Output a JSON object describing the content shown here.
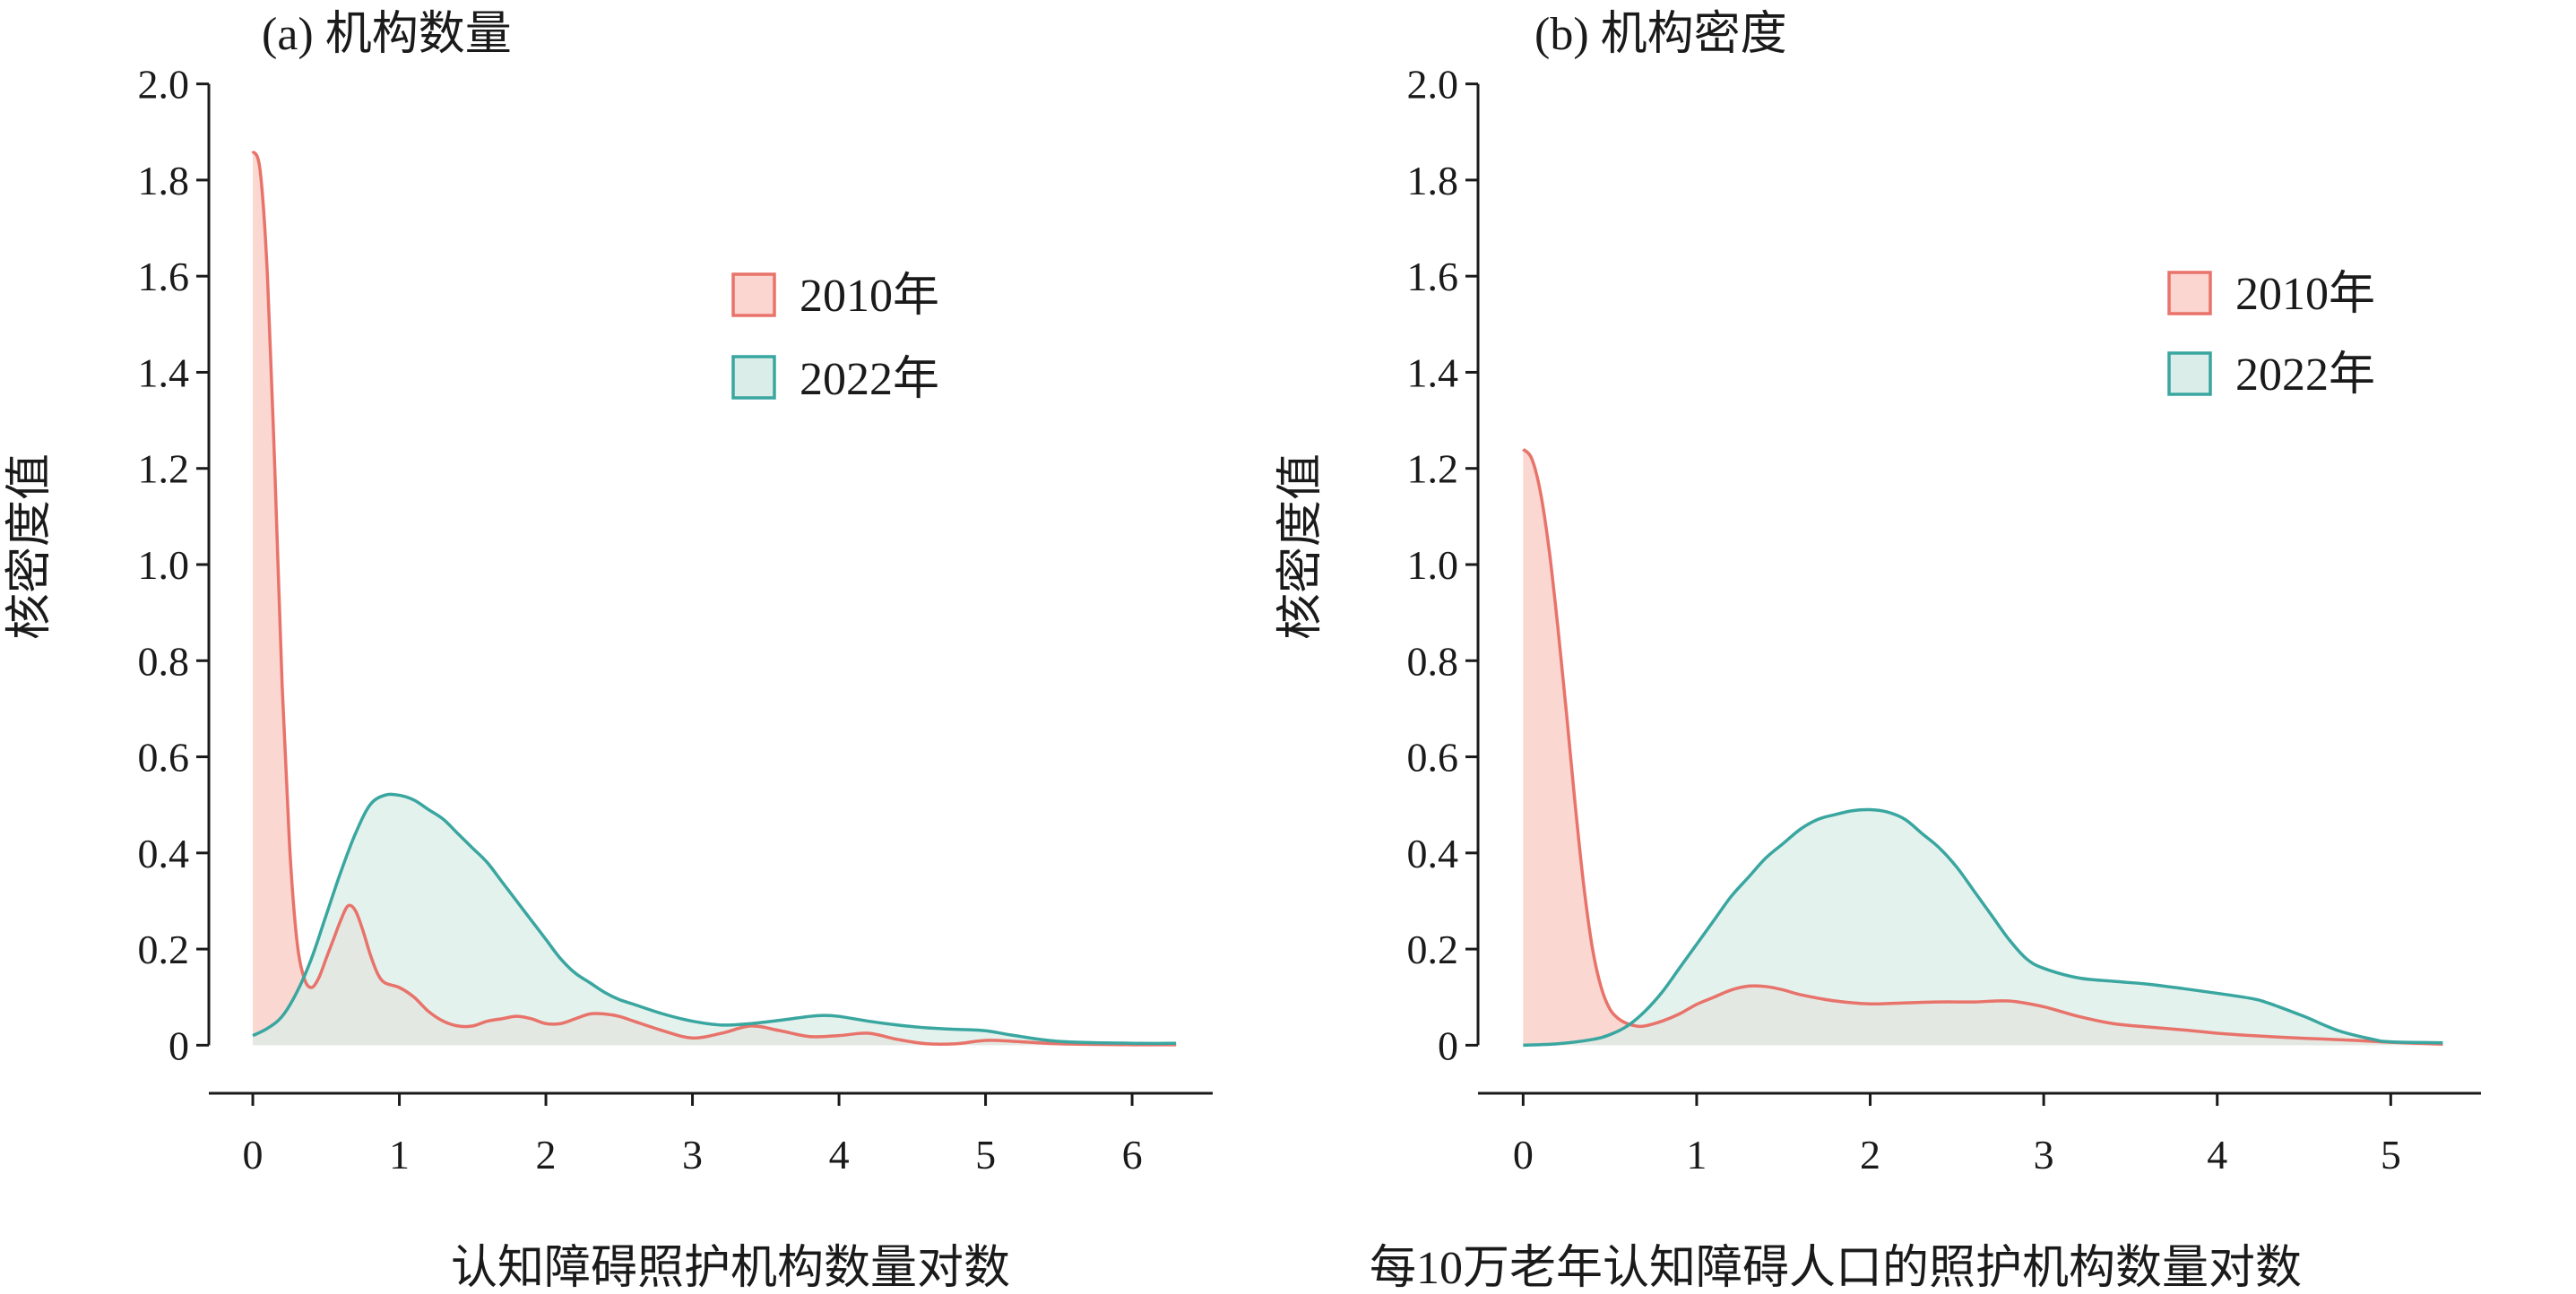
{
  "chart_data": [
    {
      "id": "a",
      "type": "area",
      "title": "(a) 机构数量",
      "xlabel": "认知障碍照护机构数量对数",
      "ylabel": "核密度值",
      "xlim": [
        -0.3,
        6.55
      ],
      "ylim": [
        -0.1,
        2.1
      ],
      "xticks": [
        0,
        1,
        2,
        3,
        4,
        5,
        6
      ],
      "xtick_labels": [
        "0",
        "1",
        "2",
        "3",
        "4",
        "5",
        "6"
      ],
      "yticks": [
        0,
        0.2,
        0.4,
        0.6,
        0.8,
        1.0,
        1.2,
        1.4,
        1.6,
        1.8,
        2.0
      ],
      "ytick_labels": [
        "0",
        "0.2",
        "0.4",
        "0.6",
        "0.8",
        "1.0",
        "1.2",
        "1.4",
        "1.6",
        "1.8",
        "2.0"
      ],
      "legend": "top-right",
      "series": [
        {
          "name": "2010年",
          "line_color": "#e8736a",
          "fill_color": "#fbd5cf",
          "x": [
            0,
            0.05,
            0.1,
            0.15,
            0.2,
            0.25,
            0.3,
            0.35,
            0.4,
            0.45,
            0.5,
            0.55,
            0.6,
            0.65,
            0.7,
            0.75,
            0.8,
            0.85,
            0.9,
            1.0,
            1.1,
            1.2,
            1.3,
            1.4,
            1.5,
            1.6,
            1.7,
            1.8,
            1.9,
            2.0,
            2.1,
            2.2,
            2.3,
            2.4,
            2.5,
            2.6,
            2.8,
            3.0,
            3.2,
            3.4,
            3.6,
            3.8,
            4.0,
            4.2,
            4.4,
            4.6,
            4.8,
            5.0,
            5.2,
            5.5,
            6.0,
            6.3
          ],
          "y": [
            1.86,
            1.82,
            1.6,
            1.2,
            0.75,
            0.42,
            0.22,
            0.14,
            0.12,
            0.14,
            0.18,
            0.22,
            0.26,
            0.29,
            0.28,
            0.24,
            0.19,
            0.15,
            0.13,
            0.12,
            0.1,
            0.07,
            0.05,
            0.04,
            0.04,
            0.05,
            0.055,
            0.06,
            0.055,
            0.045,
            0.045,
            0.055,
            0.065,
            0.065,
            0.06,
            0.05,
            0.03,
            0.015,
            0.025,
            0.04,
            0.03,
            0.018,
            0.02,
            0.025,
            0.012,
            0.003,
            0.003,
            0.01,
            0.008,
            0.003,
            0.001,
            0.001
          ]
        },
        {
          "name": "2022年",
          "line_color": "#3aa6a0",
          "fill_color": "#dbede8",
          "x": [
            0,
            0.1,
            0.2,
            0.3,
            0.4,
            0.5,
            0.6,
            0.7,
            0.8,
            0.9,
            1.0,
            1.1,
            1.2,
            1.3,
            1.4,
            1.5,
            1.6,
            1.7,
            1.8,
            1.9,
            2.0,
            2.1,
            2.2,
            2.3,
            2.4,
            2.5,
            2.6,
            2.8,
            3.0,
            3.2,
            3.4,
            3.6,
            3.8,
            3.9,
            4.0,
            4.2,
            4.4,
            4.6,
            4.8,
            5.0,
            5.2,
            5.5,
            6.0,
            6.3
          ],
          "y": [
            0.02,
            0.035,
            0.06,
            0.11,
            0.18,
            0.27,
            0.36,
            0.44,
            0.5,
            0.52,
            0.52,
            0.51,
            0.49,
            0.47,
            0.44,
            0.41,
            0.38,
            0.34,
            0.3,
            0.26,
            0.22,
            0.18,
            0.15,
            0.13,
            0.11,
            0.095,
            0.085,
            0.065,
            0.05,
            0.042,
            0.045,
            0.052,
            0.06,
            0.062,
            0.06,
            0.05,
            0.042,
            0.036,
            0.033,
            0.03,
            0.02,
            0.008,
            0.004,
            0.004
          ]
        }
      ]
    },
    {
      "id": "b",
      "type": "area",
      "title": "(b) 机构密度",
      "xlabel": "每10万老年认知障碍人口的照护机构数量对数",
      "ylabel": "核密度值",
      "xlim": [
        -0.26,
        5.52
      ],
      "ylim": [
        -0.1,
        2.1
      ],
      "xticks": [
        0,
        1,
        2,
        3,
        4,
        5
      ],
      "xtick_labels": [
        "0",
        "1",
        "2",
        "3",
        "4",
        "5"
      ],
      "yticks": [
        0,
        0.2,
        0.4,
        0.6,
        0.8,
        1.0,
        1.2,
        1.4,
        1.6,
        1.8,
        2.0
      ],
      "ytick_labels": [
        "0",
        "0.2",
        "0.4",
        "0.6",
        "0.8",
        "1.0",
        "1.2",
        "1.4",
        "1.6",
        "1.8",
        "2.0"
      ],
      "legend": "top-right",
      "series": [
        {
          "name": "2010年",
          "line_color": "#e8736a",
          "fill_color": "#fbd5cf",
          "x": [
            0,
            0.05,
            0.1,
            0.15,
            0.2,
            0.25,
            0.3,
            0.35,
            0.4,
            0.45,
            0.5,
            0.55,
            0.6,
            0.65,
            0.7,
            0.8,
            0.9,
            1.0,
            1.1,
            1.2,
            1.3,
            1.4,
            1.5,
            1.6,
            1.8,
            2.0,
            2.2,
            2.4,
            2.6,
            2.8,
            3.0,
            3.2,
            3.4,
            3.6,
            3.8,
            4.0,
            4.2,
            4.4,
            4.6,
            4.8,
            5.0,
            5.3
          ],
          "y": [
            1.24,
            1.22,
            1.15,
            1.03,
            0.87,
            0.69,
            0.5,
            0.33,
            0.2,
            0.12,
            0.075,
            0.055,
            0.045,
            0.04,
            0.04,
            0.05,
            0.065,
            0.085,
            0.1,
            0.115,
            0.123,
            0.122,
            0.115,
            0.105,
            0.092,
            0.086,
            0.088,
            0.09,
            0.09,
            0.092,
            0.08,
            0.06,
            0.045,
            0.038,
            0.032,
            0.025,
            0.02,
            0.016,
            0.013,
            0.01,
            0.006,
            0.002
          ]
        },
        {
          "name": "2022年",
          "line_color": "#3aa6a0",
          "fill_color": "#dbede8",
          "x": [
            0,
            0.2,
            0.4,
            0.5,
            0.6,
            0.7,
            0.8,
            0.9,
            1.0,
            1.1,
            1.2,
            1.3,
            1.4,
            1.5,
            1.6,
            1.7,
            1.8,
            1.9,
            2.0,
            2.1,
            2.2,
            2.3,
            2.4,
            2.5,
            2.6,
            2.7,
            2.8,
            2.9,
            3.0,
            3.2,
            3.4,
            3.6,
            3.8,
            4.0,
            4.2,
            4.3,
            4.5,
            4.7,
            4.9,
            5.0,
            5.3
          ],
          "y": [
            0.0,
            0.003,
            0.012,
            0.022,
            0.04,
            0.07,
            0.11,
            0.16,
            0.21,
            0.26,
            0.31,
            0.35,
            0.39,
            0.42,
            0.45,
            0.47,
            0.48,
            0.488,
            0.49,
            0.485,
            0.47,
            0.44,
            0.41,
            0.37,
            0.32,
            0.27,
            0.22,
            0.18,
            0.16,
            0.14,
            0.133,
            0.127,
            0.118,
            0.108,
            0.097,
            0.087,
            0.06,
            0.03,
            0.012,
            0.007,
            0.005
          ]
        }
      ]
    }
  ]
}
